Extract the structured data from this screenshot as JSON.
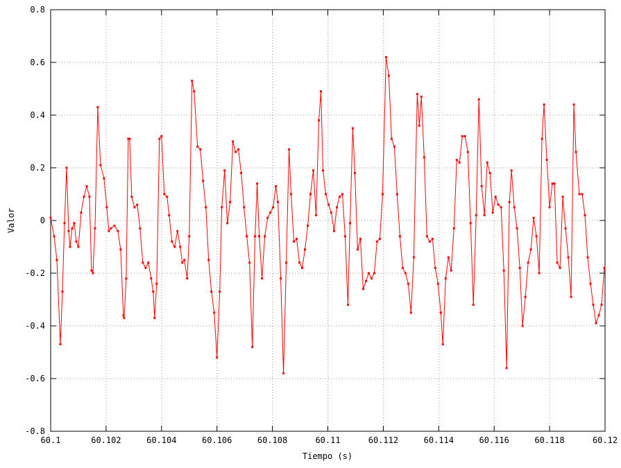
{
  "chart_data": {
    "type": "line",
    "xlabel": "Tiempo (s)",
    "ylabel": "Valor",
    "xlim": [
      60.1,
      60.12
    ],
    "ylim": [
      -0.8,
      0.8
    ],
    "xticks": [
      60.1,
      60.102,
      60.104,
      60.106,
      60.108,
      60.11,
      60.112,
      60.114,
      60.116,
      60.118,
      60.12
    ],
    "yticks": [
      -0.8,
      -0.6,
      -0.4,
      -0.2,
      0,
      0.2,
      0.4,
      0.6,
      0.8
    ],
    "grid": true,
    "x": [
      60.1,
      60.100125,
      60.100225,
      60.10035,
      60.100425,
      60.1005,
      60.100575,
      60.10065,
      60.1007,
      60.100775,
      60.10085,
      60.100925,
      60.101,
      60.1011,
      60.1012,
      60.1013,
      60.1014,
      60.101475,
      60.101525,
      60.1016,
      60.1017,
      60.1018,
      60.101925,
      60.102025,
      60.1021,
      60.102175,
      60.1023,
      60.102425,
      60.102525,
      60.102625,
      60.10265,
      60.102725,
      60.1028,
      60.10285,
      60.102925,
      60.103025,
      60.103125,
      60.103225,
      60.103325,
      60.103425,
      60.103525,
      60.103625,
      60.1037,
      60.10375,
      60.103825,
      60.103925,
      60.104,
      60.1041,
      60.1042,
      60.104275,
      60.104375,
      60.104475,
      60.104575,
      60.104675,
      60.10475,
      60.104825,
      60.104925,
      60.105,
      60.1051,
      60.105175,
      60.1053,
      60.1054,
      60.1055,
      60.1056,
      60.1057,
      60.1058,
      60.1059,
      60.106,
      60.1061,
      60.106175,
      60.106275,
      60.106375,
      60.106475,
      60.106575,
      60.106675,
      60.106775,
      60.106875,
      60.106975,
      60.107075,
      60.107175,
      60.107275,
      60.107375,
      60.10745,
      60.107525,
      60.107625,
      60.107725,
      60.107825,
      60.107925,
      60.108025,
      60.108125,
      60.1082,
      60.1083,
      60.1084,
      60.1085,
      60.1086,
      60.108675,
      60.108775,
      60.108875,
      60.108975,
      60.109075,
      60.109175,
      60.109275,
      60.109375,
      60.109475,
      60.109575,
      60.109675,
      60.10975,
      60.109825,
      60.109925,
      60.110025,
      60.110125,
      60.110225,
      60.110325,
      60.110425,
      60.110525,
      60.110625,
      60.110725,
      60.1108,
      60.1109,
      60.110975,
      60.111075,
      60.111175,
      60.111275,
      60.111375,
      60.111475,
      60.111575,
      60.111675,
      60.111775,
      60.111875,
      60.111975,
      60.1121,
      60.1122,
      60.1123,
      60.1124,
      60.1125,
      60.1126,
      60.1127,
      60.1128,
      60.1129,
      60.113,
      60.1131,
      60.113225,
      60.1133,
      60.113375,
      60.113475,
      60.113575,
      60.113675,
      60.113775,
      60.113875,
      60.113975,
      60.114075,
      60.11415,
      60.11425,
      60.11435,
      60.11445,
      60.11455,
      60.11465,
      60.11475,
      60.11485,
      60.11495,
      60.11505,
      60.11515,
      60.11525,
      60.11535,
      60.11545,
      60.11555,
      60.11565,
      60.11575,
      60.11585,
      60.11595,
      60.11605,
      60.11615,
      60.11625,
      60.11635,
      60.11645,
      60.11655,
      60.116625,
      60.116725,
      60.116825,
      60.116925,
      60.117025,
      60.117125,
      60.117225,
      60.117325,
      60.117425,
      60.117525,
      60.117625,
      60.117725,
      60.1178,
      60.1179,
      60.118,
      60.1181,
      60.118175,
      60.118275,
      60.118375,
      60.118475,
      60.118575,
      60.118675,
      60.118775,
      60.118875,
      60.11895,
      60.119075,
      60.119175,
      60.119275,
      60.119375,
      60.119475,
      60.119575,
      60.119675,
      60.119775,
      60.119875,
      60.119975
    ],
    "series": [
      {
        "color": "#ff0000",
        "values": [
          0.01,
          -0.06,
          -0.15,
          -0.47,
          -0.27,
          -0.01,
          0.2,
          -0.04,
          -0.1,
          -0.03,
          -0.01,
          -0.08,
          -0.1,
          0.03,
          0.09,
          0.13,
          0.09,
          -0.19,
          -0.2,
          -0.03,
          0.43,
          0.21,
          0.16,
          0.05,
          -0.04,
          -0.03,
          -0.02,
          -0.04,
          -0.11,
          -0.36,
          -0.37,
          -0.22,
          0.31,
          0.31,
          0.09,
          0.05,
          0.06,
          -0.03,
          -0.16,
          -0.18,
          -0.16,
          -0.22,
          -0.27,
          -0.37,
          -0.24,
          0.31,
          0.32,
          0.1,
          0.09,
          0.02,
          -0.08,
          -0.1,
          -0.04,
          -0.1,
          -0.16,
          -0.15,
          -0.22,
          -0.06,
          0.53,
          0.49,
          0.28,
          0.27,
          0.15,
          0.05,
          -0.15,
          -0.27,
          -0.35,
          -0.52,
          -0.27,
          0.05,
          0.19,
          -0.01,
          0.07,
          0.3,
          0.26,
          0.27,
          0.18,
          0.05,
          -0.06,
          -0.16,
          -0.48,
          -0.06,
          0.14,
          -0.06,
          -0.22,
          -0.06,
          0.01,
          0.03,
          0.05,
          0.13,
          0.07,
          -0.22,
          -0.58,
          -0.16,
          0.27,
          0.1,
          -0.08,
          -0.07,
          -0.16,
          -0.18,
          -0.11,
          -0.02,
          0.1,
          0.19,
          0.02,
          0.38,
          0.49,
          0.19,
          0.1,
          0.06,
          0.03,
          -0.04,
          0.05,
          0.09,
          0.1,
          -0.06,
          -0.32,
          -0.01,
          0.35,
          0.18,
          -0.11,
          -0.07,
          -0.26,
          -0.23,
          -0.2,
          -0.22,
          -0.2,
          -0.08,
          -0.07,
          0.1,
          0.62,
          0.55,
          0.31,
          0.28,
          0.1,
          -0.06,
          -0.18,
          -0.2,
          -0.24,
          -0.35,
          -0.14,
          0.48,
          0.36,
          0.47,
          0.24,
          -0.06,
          -0.08,
          -0.07,
          -0.18,
          -0.24,
          -0.35,
          -0.47,
          -0.22,
          -0.14,
          -0.19,
          -0.03,
          0.23,
          0.22,
          0.32,
          0.32,
          0.26,
          -0.01,
          -0.32,
          0.02,
          0.46,
          0.13,
          0.02,
          0.22,
          0.18,
          0.03,
          0.09,
          0.06,
          0.05,
          -0.19,
          -0.56,
          0.07,
          0.19,
          0.05,
          -0.03,
          -0.18,
          -0.4,
          -0.29,
          -0.16,
          -0.11,
          0.01,
          -0.06,
          -0.2,
          0.31,
          0.44,
          0.23,
          0.05,
          0.14,
          0.14,
          -0.16,
          -0.18,
          0.09,
          -0.03,
          -0.14,
          -0.29,
          0.44,
          0.26,
          0.1,
          0.1,
          0.02,
          -0.14,
          -0.24,
          -0.32,
          -0.39,
          -0.36,
          -0.32,
          -0.18
        ]
      }
    ]
  }
}
